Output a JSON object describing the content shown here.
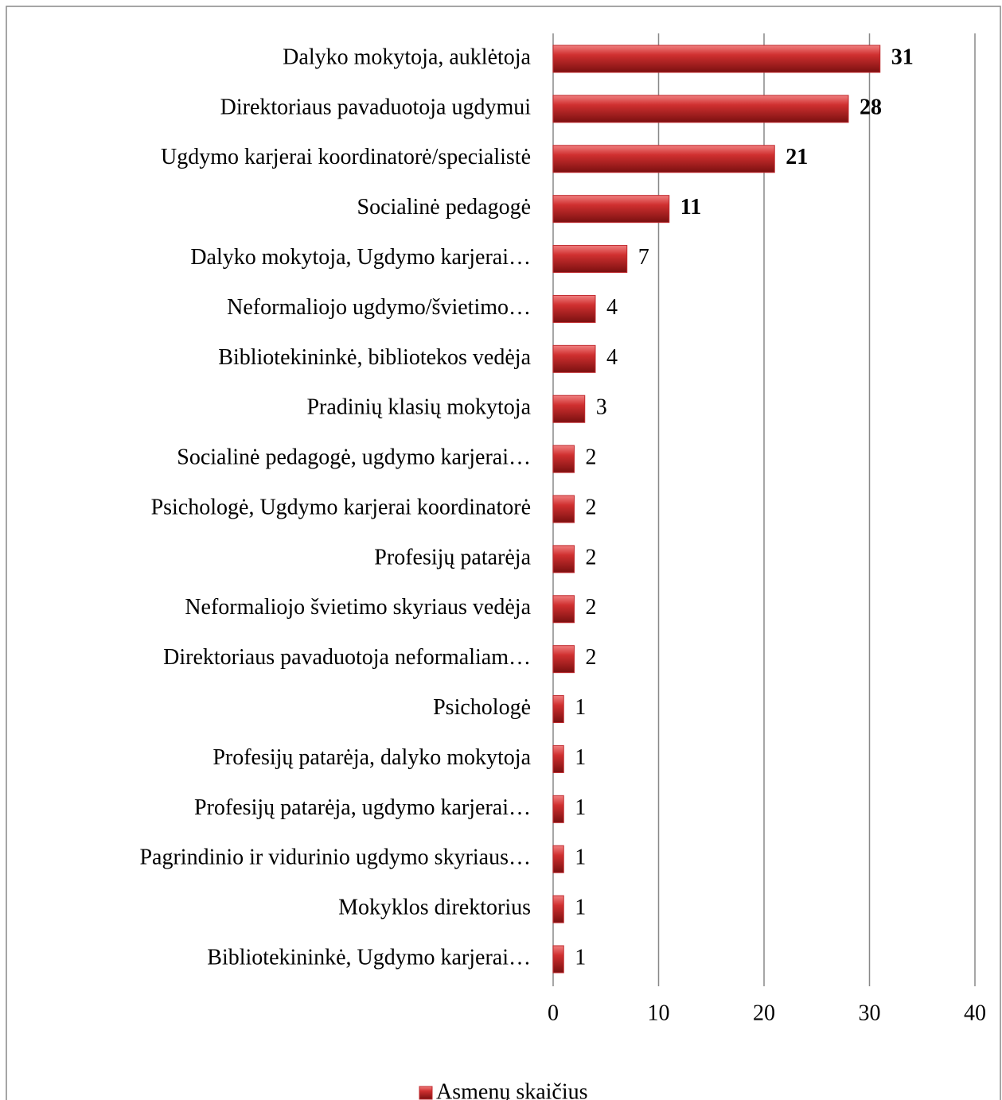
{
  "chart_data": {
    "type": "bar",
    "orientation": "horizontal",
    "categories": [
      "Dalyko mokytoja, auklėtoja",
      "Direktoriaus pavaduotoja ugdymui",
      "Ugdymo karjerai koordinatorė/specialistė",
      "Socialinė pedagogė",
      "Dalyko mokytoja, Ugdymo karjerai…",
      "Neformaliojo ugdymo/švietimo…",
      "Bibliotekininkė, bibliotekos vedėja",
      "Pradinių klasių mokytoja",
      "Socialinė pedagogė, ugdymo karjerai…",
      "Psichologė, Ugdymo karjerai koordinatorė",
      "Profesijų patarėja",
      "Neformaliojo švietimo skyriaus vedėja",
      "Direktoriaus pavaduotoja neformaliam…",
      "Psichologė",
      "Profesijų patarėja, dalyko mokytoja",
      "Profesijų patarėja, ugdymo karjerai…",
      "Pagrindinio ir vidurinio ugdymo skyriaus…",
      "Mokyklos direktorius",
      "Bibliotekininkė, Ugdymo karjerai…"
    ],
    "series": [
      {
        "name": "Asmenų skaičius",
        "color": "#c0282d",
        "values": [
          31,
          28,
          21,
          11,
          7,
          4,
          4,
          3,
          2,
          2,
          2,
          2,
          2,
          1,
          1,
          1,
          1,
          1,
          1
        ]
      }
    ],
    "xlim": [
      0,
      40
    ],
    "xticks": [
      0,
      10,
      20,
      30,
      40
    ],
    "grid": true,
    "legend": "bottom"
  }
}
